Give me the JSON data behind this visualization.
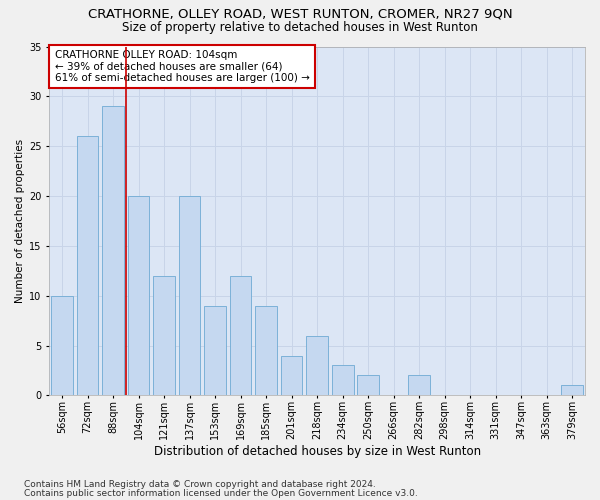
{
  "title": "CRATHORNE, OLLEY ROAD, WEST RUNTON, CROMER, NR27 9QN",
  "subtitle": "Size of property relative to detached houses in West Runton",
  "xlabel": "Distribution of detached houses by size in West Runton",
  "ylabel": "Number of detached properties",
  "footnote1": "Contains HM Land Registry data © Crown copyright and database right 2024.",
  "footnote2": "Contains public sector information licensed under the Open Government Licence v3.0.",
  "categories": [
    "56sqm",
    "72sqm",
    "88sqm",
    "104sqm",
    "121sqm",
    "137sqm",
    "153sqm",
    "169sqm",
    "185sqm",
    "201sqm",
    "218sqm",
    "234sqm",
    "250sqm",
    "266sqm",
    "282sqm",
    "298sqm",
    "314sqm",
    "331sqm",
    "347sqm",
    "363sqm",
    "379sqm"
  ],
  "values": [
    10,
    26,
    29,
    20,
    12,
    20,
    9,
    12,
    9,
    4,
    6,
    3,
    2,
    0,
    2,
    0,
    0,
    0,
    0,
    0,
    1
  ],
  "bar_color": "#c5d8f0",
  "bar_edge_color": "#6faad4",
  "highlight_line_color": "#cc0000",
  "annotation_text": "CRATHORNE OLLEY ROAD: 104sqm\n← 39% of detached houses are smaller (64)\n61% of semi-detached houses are larger (100) →",
  "annotation_box_facecolor": "#ffffff",
  "annotation_box_edgecolor": "#cc0000",
  "ylim": [
    0,
    35
  ],
  "yticks": [
    0,
    5,
    10,
    15,
    20,
    25,
    30,
    35
  ],
  "grid_color": "#c8d4e8",
  "background_color": "#dce6f5",
  "fig_facecolor": "#f0f0f0",
  "title_fontsize": 9.5,
  "subtitle_fontsize": 8.5,
  "xlabel_fontsize": 8.5,
  "ylabel_fontsize": 7.5,
  "tick_fontsize": 7,
  "annotation_fontsize": 7.5,
  "footnote_fontsize": 6.5
}
